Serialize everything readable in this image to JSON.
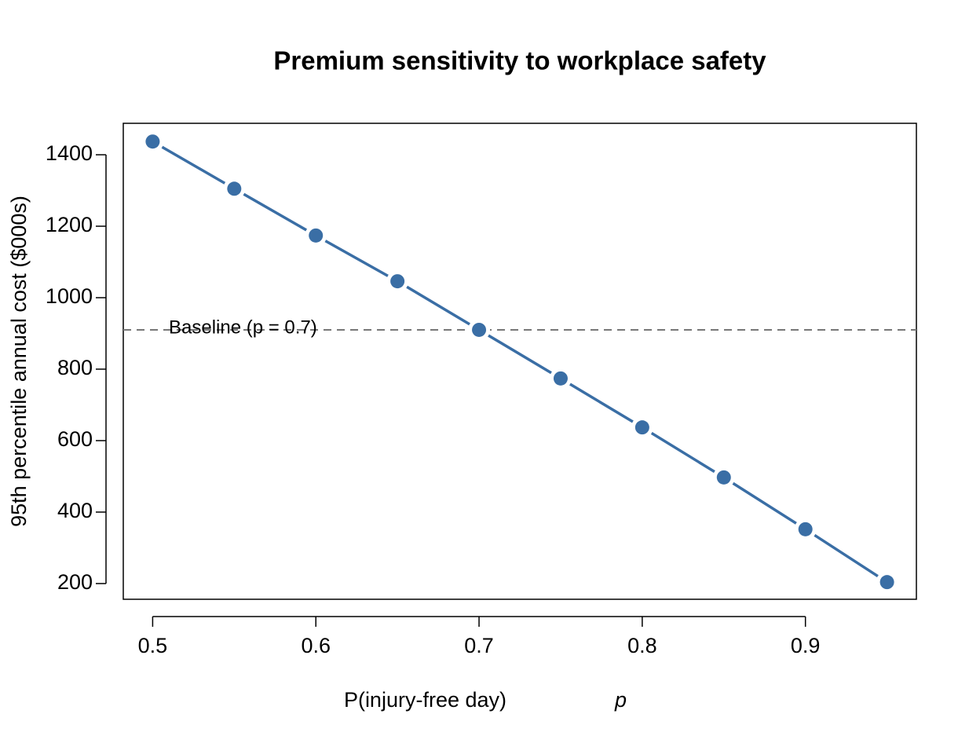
{
  "chart_data": {
    "type": "line",
    "title": "Premium sensitivity to workplace safety",
    "x_label": "P(injury-free day)",
    "x_label_symbol": "p",
    "y_label": "95th percentile annual cost ($000s)",
    "x": [
      0.5,
      0.55,
      0.6,
      0.65,
      0.7,
      0.75,
      0.8,
      0.85,
      0.9,
      0.95
    ],
    "series": [
      {
        "color": "#3a6ea5",
        "values": [
          1437,
          1305,
          1174,
          1046,
          910,
          774,
          637,
          497,
          352,
          204
        ]
      }
    ],
    "xlim": [
      0.482,
      0.968
    ],
    "ylim": [
      156,
      1488
    ],
    "xticks": [
      0.5,
      0.6,
      0.7,
      0.8,
      0.9
    ],
    "yticks": [
      200,
      400,
      600,
      800,
      1000,
      1200,
      1400
    ],
    "baseline": {
      "value": 910,
      "label": "Baseline (p = 0.7)",
      "color": "#777777"
    }
  }
}
